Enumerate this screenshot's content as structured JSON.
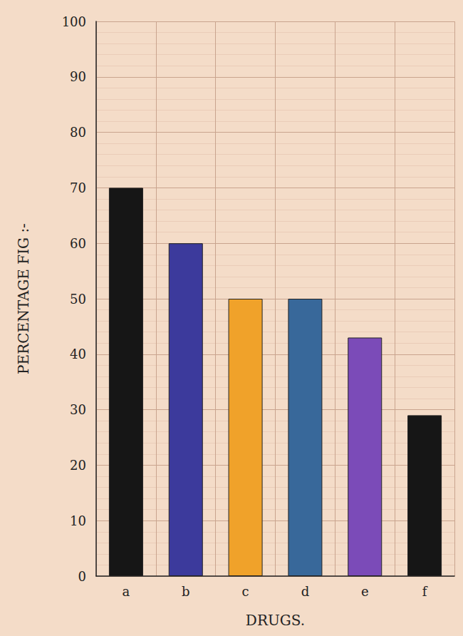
{
  "chart_data": {
    "type": "bar",
    "x_label": "DRUGS.",
    "y_label": "PERCENTAGE FIG :-",
    "categories": [
      "a",
      "b",
      "c",
      "d",
      "e",
      "f"
    ],
    "values": [
      70,
      60,
      50,
      50,
      43,
      29
    ],
    "colors": [
      "#161616",
      "#3c3a9c",
      "#f0a22a",
      "#38689a",
      "#7b4bb8",
      "#161616"
    ],
    "ylim": [
      0,
      100
    ],
    "yticks": [
      0,
      10,
      20,
      30,
      40,
      50,
      60,
      70,
      80,
      90,
      100
    ],
    "grid": true
  }
}
